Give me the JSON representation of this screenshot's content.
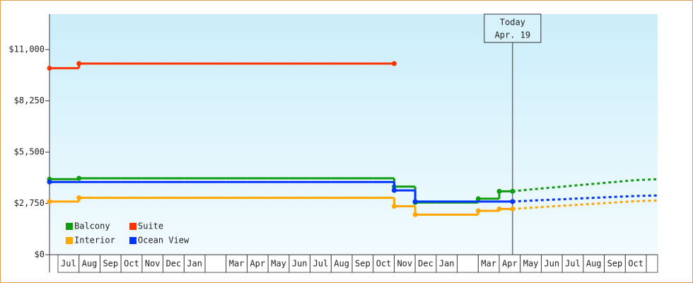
{
  "chart_data": {
    "type": "step",
    "categories": [
      "Jul",
      "Aug",
      "Sep",
      "Oct",
      "Nov",
      "Dec",
      "Jan",
      null,
      "Mar",
      "Apr",
      "May",
      "Jun",
      "Jul",
      "Aug",
      "Sep",
      "Oct",
      "Nov",
      "Dec",
      "Jan",
      null,
      "Mar",
      "Apr",
      "May",
      "Jun",
      "Jul",
      "Aug",
      "Sep",
      "Oct"
    ],
    "ylim": [
      0,
      12900
    ],
    "yticks": [
      {
        "value": 0,
        "label": "$0"
      },
      {
        "value": 2750,
        "label": "$2,750"
      },
      {
        "value": 5500,
        "label": "$5,500"
      },
      {
        "value": 8250,
        "label": "$8,250"
      },
      {
        "value": 11000,
        "label": "$11,000"
      }
    ],
    "legend": "lower-left",
    "annotation": {
      "text": [
        "Today",
        "Apr. 19"
      ],
      "category": 21
    },
    "series": [
      {
        "name": "Balcony",
        "color": "#109c10",
        "values": [
          4050,
          4100,
          4100,
          4100,
          4100,
          4100,
          4100,
          4100,
          4100,
          4100,
          4100,
          4100,
          4100,
          4100,
          4100,
          4100,
          3650,
          2800,
          2800,
          2800,
          3000,
          3400,
          null,
          null,
          null,
          null,
          null,
          null
        ],
        "forecast": [
          null,
          null,
          null,
          null,
          null,
          null,
          null,
          null,
          null,
          null,
          null,
          null,
          null,
          null,
          null,
          null,
          null,
          null,
          null,
          null,
          null,
          3400,
          3500,
          3600,
          3700,
          3800,
          3900,
          4000
        ]
      },
      {
        "name": "Suite",
        "color": "#ff3300",
        "values": [
          10000,
          10250,
          10250,
          10250,
          10250,
          10250,
          10250,
          10250,
          10250,
          10250,
          10250,
          10250,
          10250,
          10250,
          10250,
          10250,
          null,
          null,
          null,
          null,
          null,
          null,
          null,
          null,
          null,
          null,
          null,
          null
        ],
        "forecast": null
      },
      {
        "name": "Interior",
        "color": "#ffa500",
        "values": [
          2850,
          3050,
          3050,
          3050,
          3050,
          3050,
          3050,
          3050,
          3050,
          3050,
          3050,
          3050,
          3050,
          3050,
          3050,
          3050,
          2600,
          2150,
          2150,
          2150,
          2350,
          2450,
          null,
          null,
          null,
          null,
          null,
          null
        ],
        "forecast": [
          null,
          null,
          null,
          null,
          null,
          null,
          null,
          null,
          null,
          null,
          null,
          null,
          null,
          null,
          null,
          null,
          null,
          null,
          null,
          null,
          null,
          2450,
          2520,
          2590,
          2660,
          2730,
          2800,
          2870
        ]
      },
      {
        "name": "Ocean View",
        "color": "#0033ff",
        "values": [
          3900,
          3900,
          3900,
          3900,
          3900,
          3900,
          3900,
          3900,
          3900,
          3900,
          3900,
          3900,
          3900,
          3900,
          3900,
          3900,
          3450,
          2850,
          2850,
          2850,
          2850,
          2850,
          null,
          null,
          null,
          null,
          null,
          null
        ],
        "forecast": [
          null,
          null,
          null,
          null,
          null,
          null,
          null,
          null,
          null,
          null,
          null,
          null,
          null,
          null,
          null,
          null,
          null,
          null,
          null,
          null,
          null,
          2850,
          2900,
          2950,
          3000,
          3050,
          3100,
          3150
        ]
      }
    ]
  }
}
